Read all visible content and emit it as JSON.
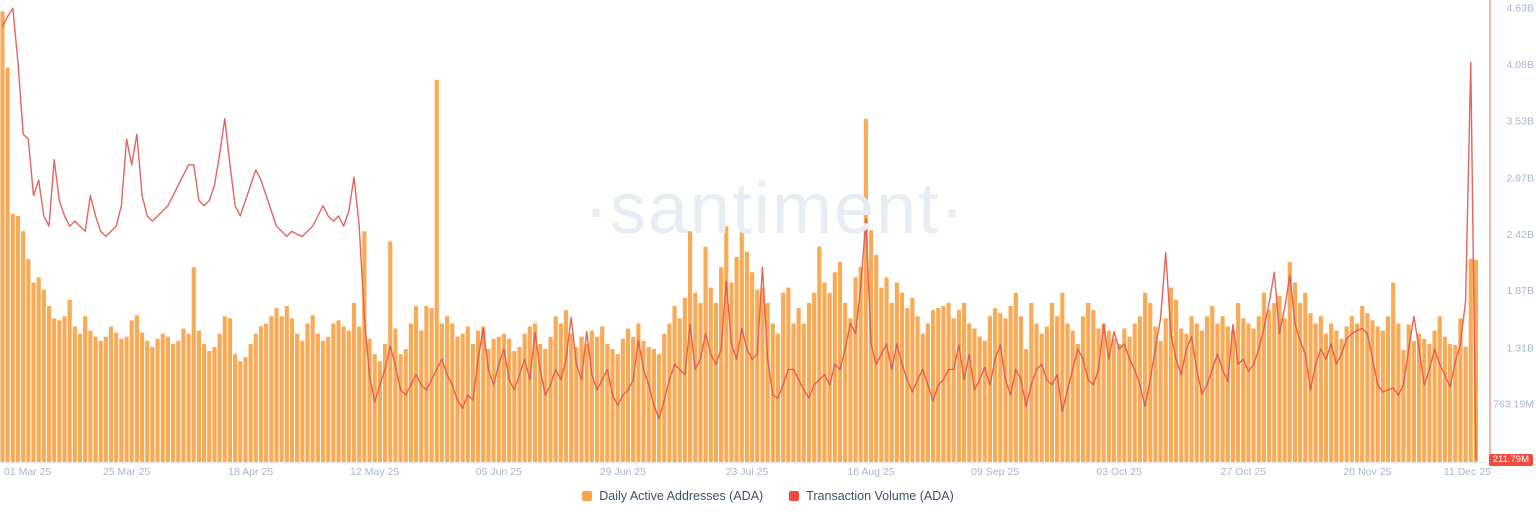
{
  "watermark": "·santiment·",
  "last_value_badge": "211.79M",
  "legend": {
    "items": [
      {
        "label": "Daily Active Addresses (ADA)",
        "color": "#F9A64B"
      },
      {
        "label": "Transaction Volume (ADA)",
        "color": "#F0493E"
      }
    ]
  },
  "theme": {
    "background": "#FFFFFF",
    "bar_color": "#F8A54D",
    "line_color": "#E0544C",
    "axis_text_color": "#A8B3CF",
    "baseline_color": "#E8EAF0",
    "right_axis_line_color": "#F5B5AE",
    "badge_bg": "#EF4B3F",
    "badge_text": "#FFFFFF",
    "watermark_color": "#E8ECF4",
    "legend_text_color": "#3F4F66"
  },
  "chart_data": {
    "type": "bar",
    "title": "",
    "xlabel": "",
    "ylabel": "",
    "unit": "billions",
    "grid": false,
    "legend_position": "bottom-center",
    "y_axis": {
      "side": "right",
      "top_value": 4.71,
      "bottom_value": 0.196,
      "ticks": [
        {
          "label": "4.63B",
          "value": 4.63
        },
        {
          "label": "4.08B",
          "value": 4.08
        },
        {
          "label": "3.53B",
          "value": 3.53
        },
        {
          "label": "2.97B",
          "value": 2.97
        },
        {
          "label": "2.42B",
          "value": 2.42
        },
        {
          "label": "1.87B",
          "value": 1.87
        },
        {
          "label": "1.31B",
          "value": 1.31
        },
        {
          "label": "763.19M",
          "value": 0.76319
        }
      ]
    },
    "x_ticks": [
      {
        "label": "01 Mar 25",
        "day": 0,
        "align": "start"
      },
      {
        "label": "25 Mar 25",
        "day": 24,
        "align": "middle"
      },
      {
        "label": "18 Apr 25",
        "day": 48,
        "align": "middle"
      },
      {
        "label": "12 May 25",
        "day": 72,
        "align": "middle"
      },
      {
        "label": "05 Jun 25",
        "day": 96,
        "align": "middle"
      },
      {
        "label": "29 Jun 25",
        "day": 120,
        "align": "middle"
      },
      {
        "label": "23 Jul 25",
        "day": 144,
        "align": "middle"
      },
      {
        "label": "16 Aug 25",
        "day": 168,
        "align": "middle"
      },
      {
        "label": "09 Sep 25",
        "day": 192,
        "align": "middle"
      },
      {
        "label": "03 Oct 25",
        "day": 216,
        "align": "middle"
      },
      {
        "label": "27 Oct 25",
        "day": 240,
        "align": "middle"
      },
      {
        "label": "20 Nov 25",
        "day": 264,
        "align": "middle"
      },
      {
        "label": "11 Dec 25",
        "day": 285,
        "align": "end"
      }
    ],
    "x_range": {
      "start": "01 Mar 25",
      "end": "11 Dec 25",
      "days": 286
    },
    "series": [
      {
        "name": "Daily Active Addresses (ADA)",
        "type": "bar",
        "color": "#F8A54D",
        "values_unit_B": [
          4.6,
          4.05,
          2.62,
          2.6,
          2.45,
          2.18,
          1.95,
          2.0,
          1.88,
          1.72,
          1.6,
          1.58,
          1.62,
          1.78,
          1.52,
          1.45,
          1.62,
          1.48,
          1.42,
          1.38,
          1.42,
          1.52,
          1.46,
          1.4,
          1.42,
          1.58,
          1.63,
          1.46,
          1.38,
          1.32,
          1.4,
          1.45,
          1.42,
          1.35,
          1.38,
          1.5,
          1.45,
          2.1,
          1.48,
          1.35,
          1.28,
          1.32,
          1.45,
          1.62,
          1.6,
          1.25,
          1.18,
          1.22,
          1.35,
          1.45,
          1.52,
          1.55,
          1.62,
          1.7,
          1.62,
          1.72,
          1.6,
          1.45,
          1.38,
          1.55,
          1.63,
          1.45,
          1.38,
          1.42,
          1.55,
          1.58,
          1.52,
          1.48,
          1.75,
          1.52,
          2.45,
          1.4,
          1.25,
          1.18,
          1.35,
          2.35,
          1.5,
          1.25,
          1.3,
          1.55,
          1.72,
          1.48,
          1.72,
          1.7,
          3.93,
          1.55,
          1.62,
          1.55,
          1.42,
          1.45,
          1.52,
          1.35,
          1.48,
          1.52,
          1.3,
          1.4,
          1.42,
          1.45,
          1.4,
          1.28,
          1.32,
          1.45,
          1.52,
          1.55,
          1.35,
          1.3,
          1.42,
          1.62,
          1.55,
          1.68,
          1.45,
          1.32,
          1.42,
          1.35,
          1.48,
          1.42,
          1.52,
          1.35,
          1.3,
          1.25,
          1.4,
          1.5,
          1.42,
          1.55,
          1.38,
          1.32,
          1.3,
          1.25,
          1.45,
          1.55,
          1.72,
          1.6,
          1.8,
          2.45,
          1.85,
          1.75,
          2.3,
          1.9,
          1.75,
          2.1,
          2.5,
          1.95,
          2.2,
          2.5,
          2.25,
          2.05,
          1.88,
          1.9,
          1.75,
          1.55,
          1.45,
          1.85,
          1.9,
          1.55,
          1.7,
          1.55,
          1.75,
          1.85,
          2.3,
          1.95,
          1.85,
          2.05,
          2.15,
          1.75,
          1.6,
          2.0,
          2.1,
          3.55,
          2.46,
          2.22,
          1.9,
          2.0,
          1.75,
          1.95,
          1.85,
          1.7,
          1.8,
          1.62,
          1.45,
          1.55,
          1.68,
          1.7,
          1.72,
          1.75,
          1.6,
          1.68,
          1.75,
          1.55,
          1.5,
          1.42,
          1.38,
          1.62,
          1.7,
          1.65,
          1.6,
          1.72,
          1.85,
          1.62,
          1.3,
          1.75,
          1.55,
          1.45,
          1.52,
          1.75,
          1.62,
          1.85,
          1.55,
          1.48,
          1.35,
          1.62,
          1.75,
          1.68,
          1.5,
          1.55,
          1.48,
          1.4,
          1.35,
          1.5,
          1.42,
          1.55,
          1.62,
          1.85,
          1.75,
          1.52,
          1.38,
          1.6,
          1.9,
          1.78,
          1.5,
          1.45,
          1.62,
          1.55,
          1.48,
          1.62,
          1.72,
          1.55,
          1.62,
          1.52,
          1.48,
          1.75,
          1.6,
          1.55,
          1.5,
          1.62,
          1.85,
          1.68,
          1.75,
          1.82,
          1.6,
          2.15,
          1.95,
          1.75,
          1.85,
          1.65,
          1.55,
          1.62,
          1.45,
          1.55,
          1.48,
          1.4,
          1.52,
          1.62,
          1.55,
          1.72,
          1.65,
          1.58,
          1.52,
          1.48,
          1.62,
          1.95,
          1.55,
          1.29,
          1.54,
          1.38,
          1.45,
          1.4,
          1.35,
          1.48,
          1.62,
          1.42,
          1.35,
          1.34,
          1.6,
          1.32,
          2.18,
          2.17
        ]
      },
      {
        "name": "Transaction Volume (ADA)",
        "type": "line",
        "color": "#E0544C",
        "last_value_label": "211.79M",
        "values_unit_B": [
          4.45,
          4.55,
          4.63,
          4.1,
          3.4,
          3.35,
          2.8,
          2.95,
          2.6,
          2.5,
          3.15,
          2.75,
          2.6,
          2.5,
          2.55,
          2.5,
          2.45,
          2.8,
          2.6,
          2.45,
          2.4,
          2.45,
          2.5,
          2.7,
          3.35,
          3.1,
          3.4,
          2.8,
          2.6,
          2.55,
          2.6,
          2.65,
          2.7,
          2.8,
          2.9,
          3.0,
          3.1,
          3.1,
          2.75,
          2.7,
          2.75,
          2.9,
          3.2,
          3.55,
          3.1,
          2.7,
          2.6,
          2.75,
          2.9,
          3.05,
          2.95,
          2.8,
          2.65,
          2.5,
          2.45,
          2.4,
          2.45,
          2.42,
          2.4,
          2.45,
          2.5,
          2.6,
          2.7,
          2.6,
          2.55,
          2.6,
          2.5,
          2.65,
          2.98,
          2.5,
          1.6,
          1.04,
          0.78,
          0.95,
          1.1,
          1.33,
          1.14,
          0.9,
          0.85,
          0.95,
          1.05,
          0.95,
          0.9,
          1.0,
          1.1,
          1.2,
          1.05,
          0.95,
          0.8,
          0.72,
          0.85,
          0.8,
          1.2,
          1.5,
          1.1,
          0.95,
          1.15,
          1.3,
          1.0,
          0.9,
          1.05,
          1.2,
          1.0,
          1.46,
          1.1,
          0.85,
          0.95,
          1.1,
          1.0,
          1.2,
          1.61,
          1.15,
          1.0,
          1.47,
          1.05,
          0.9,
          1.0,
          1.1,
          0.85,
          0.75,
          0.85,
          0.9,
          1.0,
          1.39,
          1.1,
          0.95,
          0.75,
          0.62,
          0.8,
          1.0,
          1.15,
          1.1,
          1.05,
          1.54,
          1.1,
          1.2,
          1.45,
          1.25,
          1.15,
          1.3,
          1.96,
          1.35,
          1.2,
          1.5,
          1.3,
          1.2,
          1.25,
          2.1,
          1.2,
          0.85,
          0.82,
          0.95,
          1.1,
          1.1,
          1.0,
          0.9,
          0.82,
          0.95,
          1.0,
          1.05,
          0.95,
          1.15,
          1.1,
          1.3,
          1.55,
          1.45,
          1.9,
          2.57,
          1.35,
          1.15,
          1.25,
          1.35,
          1.1,
          1.35,
          1.15,
          1.0,
          0.88,
          1.0,
          1.1,
          0.95,
          0.79,
          0.95,
          1.0,
          1.1,
          1.1,
          1.34,
          1.0,
          1.25,
          0.9,
          1.0,
          1.12,
          0.95,
          1.2,
          1.34,
          1.0,
          0.85,
          1.1,
          1.0,
          0.74,
          0.95,
          1.1,
          1.15,
          1.0,
          0.95,
          1.05,
          0.69,
          0.9,
          1.1,
          1.3,
          1.2,
          1.0,
          0.95,
          1.1,
          1.54,
          1.2,
          1.47,
          1.3,
          1.35,
          1.2,
          1.1,
          0.95,
          0.74,
          1.0,
          1.3,
          1.6,
          2.24,
          1.45,
          1.2,
          1.05,
          1.3,
          1.42,
          1.1,
          0.86,
          0.95,
          1.1,
          1.25,
          1.1,
          0.98,
          1.54,
          1.15,
          1.2,
          1.08,
          1.15,
          1.3,
          1.5,
          1.75,
          2.05,
          1.45,
          1.7,
          2.02,
          1.55,
          1.38,
          1.25,
          0.9,
          1.15,
          1.3,
          1.2,
          1.35,
          1.15,
          1.25,
          1.4,
          1.45,
          1.48,
          1.5,
          1.45,
          1.2,
          0.95,
          0.88,
          0.9,
          0.92,
          0.85,
          0.95,
          1.3,
          1.62,
          1.3,
          0.95,
          1.1,
          1.3,
          1.15,
          1.05,
          0.93,
          1.17,
          1.35,
          1.77,
          4.1,
          0.21179
        ]
      }
    ]
  }
}
